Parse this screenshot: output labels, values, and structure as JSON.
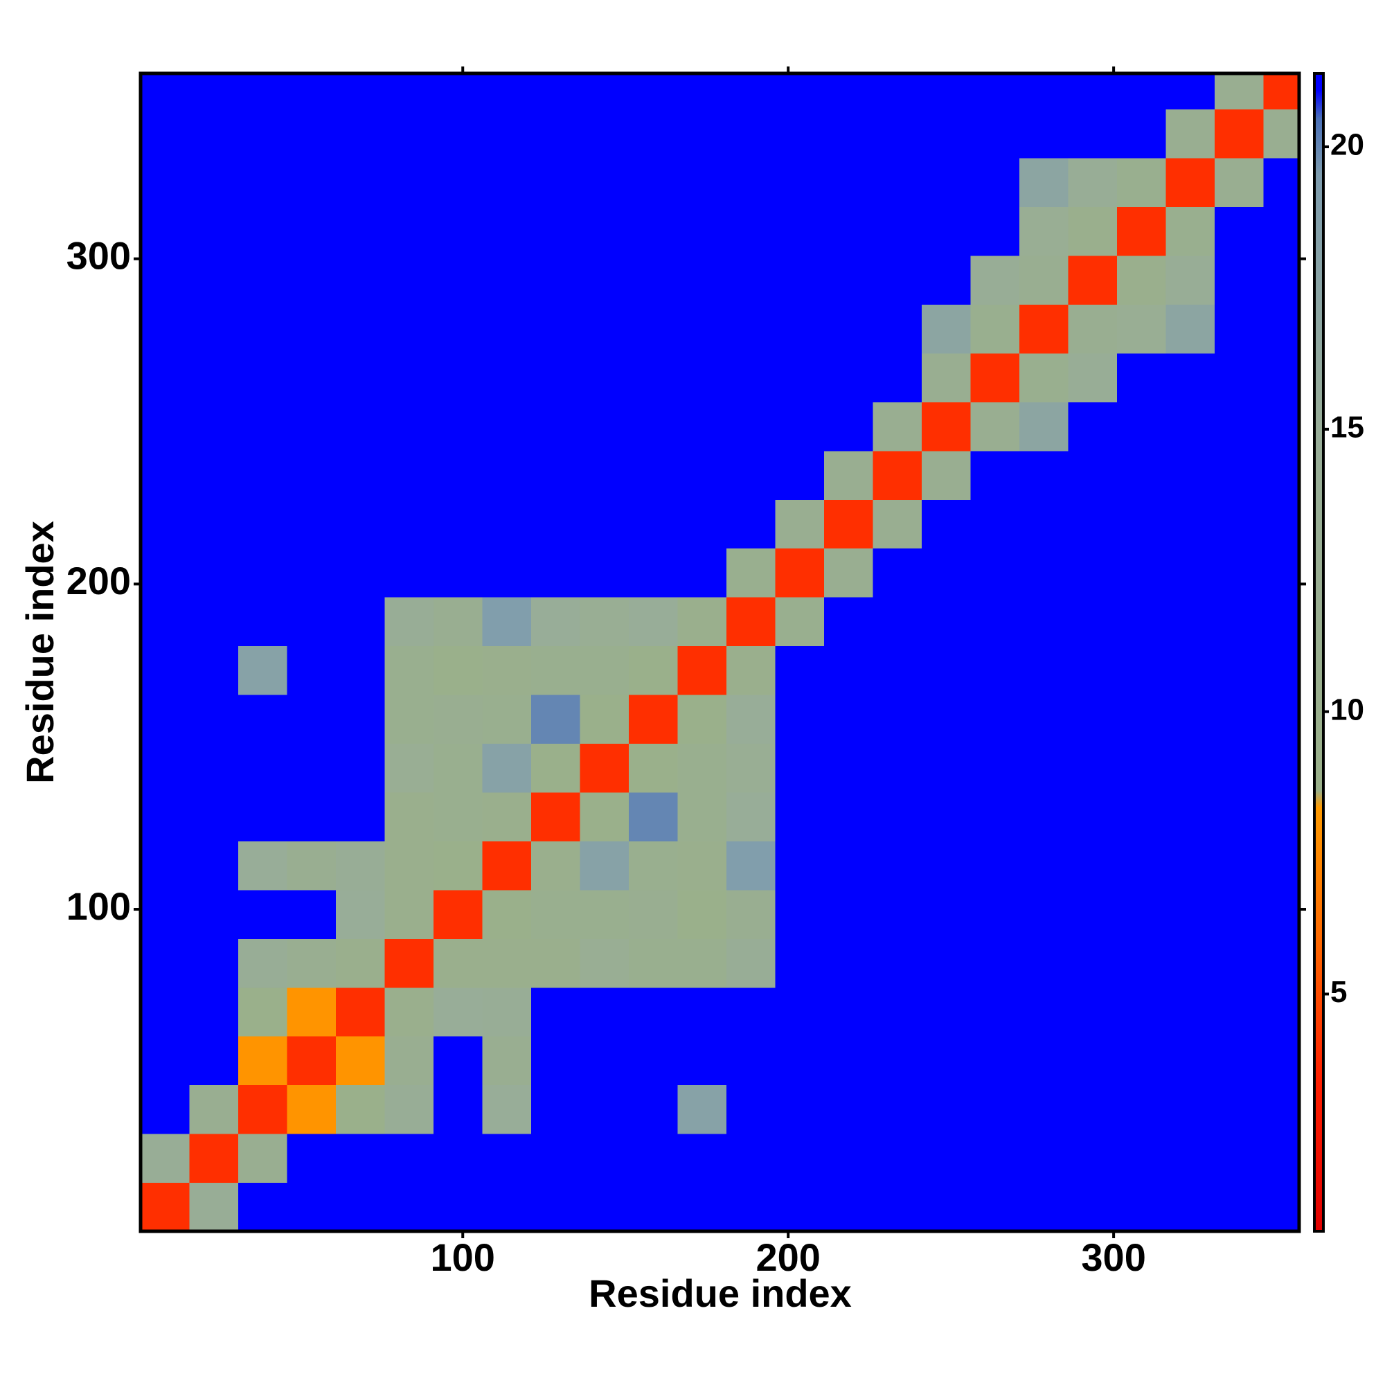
{
  "chart_data": {
    "type": "heatmap",
    "xlabel": "Residue index",
    "ylabel": "Residue index",
    "xbins": [
      1,
      16,
      31,
      46,
      61,
      76,
      91,
      106,
      121,
      136,
      151,
      166,
      181,
      196,
      211,
      226,
      241,
      256,
      271,
      286,
      301,
      316,
      331,
      346,
      357
    ],
    "ybins": [
      1,
      16,
      31,
      46,
      61,
      76,
      91,
      106,
      121,
      136,
      151,
      166,
      181,
      196,
      211,
      226,
      241,
      256,
      271,
      286,
      301,
      316,
      331,
      346,
      357
    ],
    "z": [
      [
        4,
        14,
        21,
        21,
        21,
        21,
        21,
        21,
        21,
        21,
        21,
        21,
        21,
        21,
        21,
        21,
        21,
        21,
        21,
        21,
        21,
        21,
        21,
        21
      ],
      [
        14,
        4,
        12,
        21,
        21,
        21,
        21,
        21,
        21,
        21,
        21,
        21,
        21,
        21,
        21,
        21,
        21,
        21,
        21,
        21,
        21,
        21,
        21,
        21
      ],
      [
        21,
        12,
        4,
        8,
        9,
        14,
        21,
        15,
        21,
        21,
        21,
        18,
        21,
        21,
        21,
        21,
        21,
        21,
        21,
        21,
        21,
        21,
        21,
        21
      ],
      [
        21,
        21,
        8,
        4,
        8,
        12,
        21,
        12,
        21,
        21,
        21,
        21,
        21,
        21,
        21,
        21,
        21,
        21,
        21,
        21,
        21,
        21,
        21,
        21
      ],
      [
        21,
        21,
        9,
        8,
        4,
        10,
        15,
        14,
        21,
        21,
        21,
        21,
        21,
        21,
        21,
        21,
        21,
        21,
        21,
        21,
        21,
        21,
        21,
        21
      ],
      [
        21,
        21,
        14,
        12,
        10,
        4,
        10,
        10,
        10,
        13,
        11,
        11,
        14,
        21,
        21,
        21,
        21,
        21,
        21,
        21,
        21,
        21,
        21,
        21
      ],
      [
        21,
        21,
        21,
        21,
        15,
        10,
        4,
        9,
        11,
        11,
        12,
        9,
        12,
        21,
        21,
        21,
        21,
        21,
        21,
        21,
        21,
        21,
        21,
        21
      ],
      [
        21,
        21,
        15,
        12,
        14,
        10,
        9,
        4,
        10,
        18,
        11,
        10,
        19,
        21,
        21,
        21,
        21,
        21,
        21,
        21,
        21,
        21,
        21,
        21
      ],
      [
        21,
        21,
        21,
        21,
        21,
        10,
        11,
        10,
        4,
        9,
        20,
        11,
        15,
        21,
        21,
        21,
        21,
        21,
        21,
        21,
        21,
        21,
        21,
        21
      ],
      [
        21,
        21,
        21,
        21,
        21,
        13,
        11,
        18,
        9,
        4,
        9,
        11,
        13,
        21,
        21,
        21,
        21,
        21,
        21,
        21,
        21,
        21,
        21,
        21
      ],
      [
        21,
        21,
        21,
        21,
        21,
        11,
        12,
        11,
        20,
        9,
        4,
        9,
        15,
        21,
        21,
        21,
        21,
        21,
        21,
        21,
        21,
        21,
        21,
        21
      ],
      [
        21,
        21,
        18,
        21,
        21,
        11,
        9,
        10,
        11,
        11,
        9,
        4,
        10,
        21,
        21,
        21,
        21,
        21,
        21,
        21,
        21,
        21,
        21,
        21
      ],
      [
        21,
        21,
        21,
        21,
        21,
        14,
        12,
        19,
        15,
        13,
        15,
        10,
        4,
        11,
        21,
        21,
        21,
        21,
        21,
        21,
        21,
        21,
        21,
        21
      ],
      [
        21,
        21,
        21,
        21,
        21,
        21,
        21,
        21,
        21,
        21,
        21,
        21,
        11,
        4,
        12,
        21,
        21,
        21,
        21,
        21,
        21,
        21,
        21,
        21
      ],
      [
        21,
        21,
        21,
        21,
        21,
        21,
        21,
        21,
        21,
        21,
        21,
        21,
        21,
        12,
        4,
        12,
        21,
        21,
        21,
        21,
        21,
        21,
        21,
        21
      ],
      [
        21,
        21,
        21,
        21,
        21,
        21,
        21,
        21,
        21,
        21,
        21,
        21,
        21,
        21,
        12,
        4,
        12,
        21,
        21,
        21,
        21,
        21,
        21,
        21
      ],
      [
        21,
        21,
        21,
        21,
        21,
        21,
        21,
        21,
        21,
        21,
        21,
        21,
        21,
        21,
        21,
        12,
        4,
        12,
        17,
        21,
        21,
        21,
        21,
        21
      ],
      [
        21,
        21,
        21,
        21,
        21,
        21,
        21,
        21,
        21,
        21,
        21,
        21,
        21,
        21,
        21,
        21,
        12,
        4,
        11,
        14,
        21,
        21,
        21,
        21
      ],
      [
        21,
        21,
        21,
        21,
        21,
        21,
        21,
        21,
        21,
        21,
        21,
        21,
        21,
        21,
        21,
        21,
        17,
        11,
        4,
        12,
        13,
        17,
        21,
        21
      ],
      [
        21,
        21,
        21,
        21,
        21,
        21,
        21,
        21,
        21,
        21,
        21,
        21,
        21,
        21,
        21,
        21,
        21,
        14,
        12,
        4,
        10,
        14,
        21,
        21
      ],
      [
        21,
        21,
        21,
        21,
        21,
        21,
        21,
        21,
        21,
        21,
        21,
        21,
        21,
        21,
        21,
        21,
        21,
        21,
        13,
        10,
        4,
        11,
        21,
        21
      ],
      [
        21,
        21,
        21,
        21,
        21,
        21,
        21,
        21,
        21,
        21,
        21,
        21,
        21,
        21,
        21,
        21,
        21,
        21,
        17,
        14,
        11,
        4,
        12,
        21
      ],
      [
        21,
        21,
        21,
        21,
        21,
        21,
        21,
        21,
        21,
        21,
        21,
        21,
        21,
        21,
        21,
        21,
        21,
        21,
        21,
        21,
        21,
        12,
        4,
        12
      ],
      [
        21,
        21,
        21,
        21,
        21,
        21,
        21,
        21,
        21,
        21,
        21,
        21,
        21,
        21,
        21,
        21,
        21,
        21,
        21,
        21,
        21,
        21,
        12,
        4
      ]
    ],
    "xlim": [
      1,
      357
    ],
    "ylim": [
      1,
      357
    ],
    "xticks": [
      100,
      200,
      300
    ],
    "yticks": [
      100,
      200,
      300
    ],
    "colorscale": [
      [
        0.8,
        "#e00000"
      ],
      [
        3.5,
        "#ff2000"
      ],
      [
        6,
        "#ff6a00"
      ],
      [
        8.3,
        "#ff9a00"
      ],
      [
        8.6,
        "#9ab08a"
      ],
      [
        15,
        "#98ad98"
      ],
      [
        19.5,
        "#7e9cae"
      ],
      [
        20.5,
        "#4a70b8"
      ],
      [
        21,
        "#0000ff"
      ],
      [
        21.3,
        "#0000ff"
      ]
    ],
    "colorbar": {
      "lim": [
        0.8,
        21.3
      ],
      "ticks": [
        5,
        10,
        15,
        20
      ]
    }
  }
}
